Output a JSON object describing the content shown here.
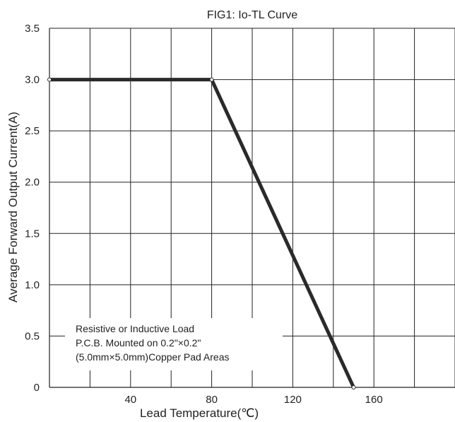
{
  "chart_data": {
    "type": "line",
    "title": "FIG1:  Io-TL Curve",
    "xlabel": "Lead Temperature(℃)",
    "ylabel": "Average Forward Output Current(A)",
    "xlim": [
      0,
      200
    ],
    "ylim": [
      0,
      3.5
    ],
    "x_ticks": [
      40,
      80,
      120,
      160
    ],
    "x_tick_labels": [
      "40",
      "80",
      "120",
      "160"
    ],
    "y_ticks": [
      0,
      0.5,
      1.0,
      1.5,
      2.0,
      2.5,
      3.0,
      3.5
    ],
    "y_tick_labels": [
      "0",
      "0.5",
      "1.0",
      "1.5",
      "2.0",
      "2.5",
      "3.0",
      "3.5"
    ],
    "grid": true,
    "series": [
      {
        "x": [
          0,
          80,
          150
        ],
        "y": [
          3.0,
          3.0,
          0
        ]
      }
    ],
    "annotation": [
      "Resistive or Inductive Load",
      "P.C.B. Mounted on 0.2\"×0.2\"",
      "(5.0mm×5.0mm)Copper Pad Areas"
    ],
    "colors": {
      "line": "#2a2a2a",
      "grid": "#222222"
    }
  }
}
